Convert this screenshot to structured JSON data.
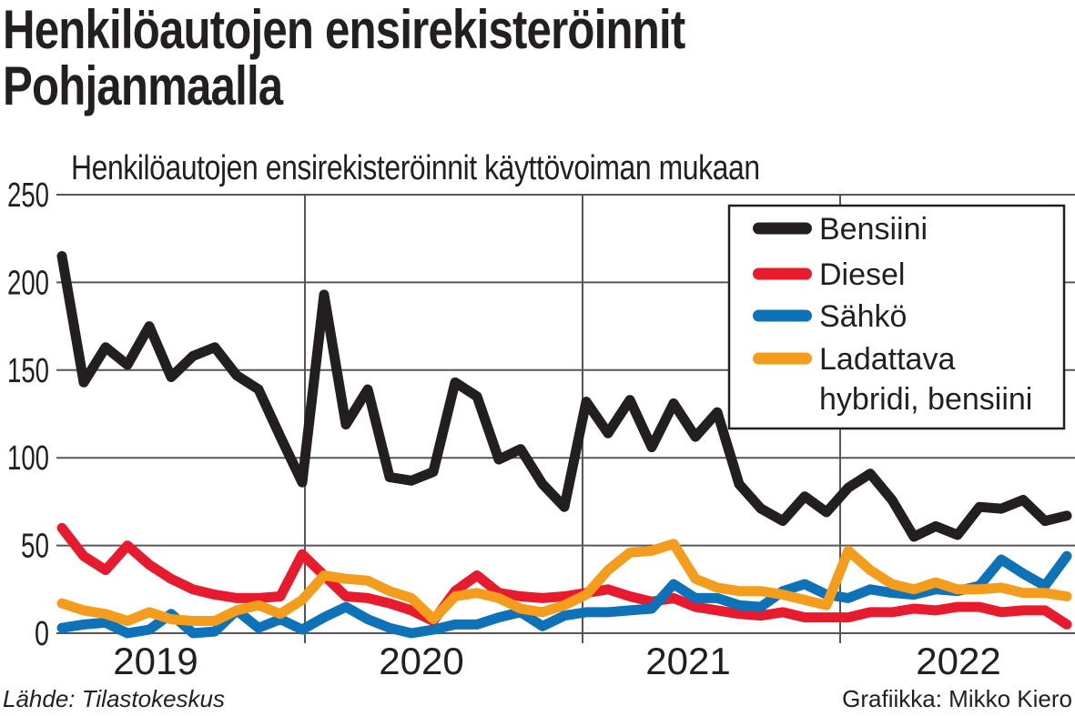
{
  "title": {
    "line1": "Henkilöautojen ensirekisteröinnit",
    "line2": "Pohjanmaalla"
  },
  "subtitle": "Henkilöautojen ensirekisteröinnit käyttövoiman mukaan",
  "footer": {
    "source": "Lähde: Tilastokeskus",
    "credit": "Grafiikka: Mikko Kiero"
  },
  "chart_data": {
    "type": "line",
    "x_unit": "month",
    "x_tick_labels": [
      "2019",
      "2020",
      "2021",
      "2022"
    ],
    "y_ticks": [
      0,
      50,
      100,
      150,
      200,
      250
    ],
    "ylim": [
      0,
      250
    ],
    "grid": true,
    "legend_position": "top-right",
    "series": [
      {
        "name": "Bensiini",
        "color": "#231f20",
        "values": [
          215,
          143,
          163,
          153,
          175,
          146,
          158,
          163,
          147,
          139,
          112,
          86,
          193,
          119,
          139,
          89,
          87,
          92,
          143,
          135,
          99,
          105,
          85,
          72,
          132,
          114,
          133,
          106,
          131,
          112,
          126,
          85,
          71,
          64,
          78,
          69,
          83,
          91,
          76,
          55,
          61,
          56,
          72,
          71,
          76,
          64,
          67
        ]
      },
      {
        "name": "Diesel",
        "color": "#e71b2d",
        "values": [
          60,
          44,
          36,
          50,
          39,
          31,
          25,
          22,
          20,
          20,
          21,
          45,
          33,
          21,
          20,
          17,
          13,
          7,
          24,
          33,
          23,
          21,
          20,
          21,
          23,
          25,
          21,
          18,
          20,
          15,
          13,
          11,
          10,
          12,
          9,
          9,
          9,
          12,
          12,
          14,
          13,
          15,
          15,
          12,
          13,
          13,
          5
        ]
      },
      {
        "name": "Sähkö",
        "color": "#0e72b8",
        "values": [
          3,
          5,
          6,
          0,
          2,
          11,
          0,
          1,
          13,
          3,
          8,
          2,
          9,
          15,
          8,
          3,
          0,
          2,
          5,
          5,
          9,
          12,
          4,
          10,
          12,
          12,
          13,
          14,
          28,
          20,
          20,
          16,
          15,
          24,
          28,
          22,
          20,
          25,
          23,
          22,
          25,
          24,
          27,
          42,
          34,
          27,
          44
        ]
      },
      {
        "name": "Ladattava hybridi, bensiini",
        "legend_lines": [
          "Ladattava",
          "hybridi, bensiini"
        ],
        "color": "#f49d1d",
        "values": [
          17,
          13,
          11,
          7,
          12,
          8,
          7,
          7,
          13,
          16,
          11,
          19,
          33,
          31,
          30,
          24,
          20,
          8,
          21,
          23,
          20,
          14,
          12,
          16,
          22,
          36,
          46,
          47,
          51,
          31,
          26,
          24,
          24,
          22,
          19,
          16,
          47,
          36,
          28,
          25,
          29,
          25,
          25,
          26,
          23,
          23,
          21
        ]
      }
    ]
  }
}
